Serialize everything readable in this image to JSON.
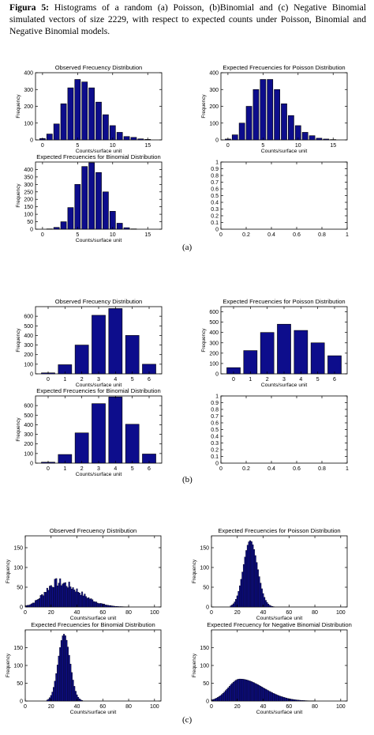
{
  "caption": {
    "label": "Figura 5:",
    "text": "Histograms of a random (a) Poisson, (b)Binomial and (c) Negative Binomial simulated vectors of size 2229, with respect to expected counts under Poisson, Binomial and Negative Binomial models."
  },
  "panel_labels": [
    "(a)",
    "(b)",
    "(c)"
  ],
  "colors": {
    "bar": "#0d0d8c",
    "bar_edge": "#000000"
  },
  "chart_data": [
    {
      "id": "a1",
      "type": "bar",
      "title": "Observed Frecuency Distribution",
      "xlabel": "Counts/surface unit",
      "ylabel": "Frequency",
      "x": [
        0,
        1,
        2,
        3,
        4,
        5,
        6,
        7,
        8,
        9,
        10,
        11,
        12,
        13,
        14,
        15
      ],
      "values": [
        8,
        35,
        95,
        215,
        310,
        360,
        345,
        310,
        225,
        150,
        85,
        45,
        20,
        15,
        6,
        3
      ],
      "xlim": [
        -1,
        17
      ],
      "ylim": [
        0,
        400
      ],
      "xticks": [
        0,
        5,
        10,
        15
      ],
      "yticks": [
        0,
        100,
        200,
        300,
        400
      ]
    },
    {
      "id": "a2",
      "type": "bar",
      "title": "Expected Frecuencies for Poisson Distribution",
      "xlabel": "Counts/surface unit",
      "ylabel": "Frequency",
      "x": [
        0,
        1,
        2,
        3,
        4,
        5,
        6,
        7,
        8,
        9,
        10,
        11,
        12,
        13,
        14,
        15
      ],
      "values": [
        5,
        30,
        100,
        200,
        300,
        360,
        360,
        300,
        215,
        145,
        85,
        45,
        25,
        10,
        5,
        2
      ],
      "xlim": [
        -1,
        17
      ],
      "ylim": [
        0,
        400
      ],
      "xticks": [
        0,
        5,
        10,
        15
      ],
      "yticks": [
        0,
        100,
        200,
        300,
        400
      ]
    },
    {
      "id": "a3",
      "type": "bar",
      "title": "Expected Frecuencies for Binomial Distribution",
      "xlabel": "Counts/surface unit",
      "ylabel": "Frequency",
      "x": [
        0,
        1,
        2,
        3,
        4,
        5,
        6,
        7,
        8,
        9,
        10,
        11,
        12,
        13,
        14,
        15
      ],
      "values": [
        0,
        2,
        12,
        50,
        145,
        300,
        420,
        445,
        380,
        250,
        120,
        40,
        10,
        2,
        0,
        0
      ],
      "xlim": [
        -1,
        17
      ],
      "ylim": [
        0,
        450
      ],
      "xticks": [
        0,
        5,
        10,
        15
      ],
      "yticks": [
        0,
        50,
        100,
        150,
        200,
        250,
        300,
        350,
        400
      ]
    },
    {
      "id": "a4",
      "type": "empty",
      "xlim": [
        0,
        1
      ],
      "ylim": [
        0,
        1
      ],
      "xticks": [
        0,
        0.2,
        0.4,
        0.6,
        0.8,
        1
      ],
      "yticks": [
        0,
        0.1,
        0.2,
        0.3,
        0.4,
        0.5,
        0.6,
        0.7,
        0.8,
        0.9,
        1
      ]
    },
    {
      "id": "b1",
      "type": "bar",
      "title": "Observed Frecuency Distribution",
      "xlabel": "Counts/surface unit",
      "ylabel": "Frequency",
      "x": [
        0,
        1,
        2,
        3,
        4,
        5,
        6
      ],
      "values": [
        10,
        95,
        300,
        610,
        680,
        400,
        100
      ],
      "xlim": [
        -0.75,
        6.75
      ],
      "ylim": [
        0,
        700
      ],
      "xticks": [
        0,
        1,
        2,
        3,
        4,
        5,
        6
      ],
      "yticks": [
        0,
        100,
        200,
        300,
        400,
        500,
        600
      ]
    },
    {
      "id": "b2",
      "type": "bar",
      "title": "Expected Frecuencies for Poisson Distribution",
      "xlabel": "Counts/surface unit",
      "ylabel": "Frequency",
      "x": [
        0,
        1,
        2,
        3,
        4,
        5,
        6
      ],
      "values": [
        60,
        225,
        400,
        480,
        420,
        300,
        175
      ],
      "xlim": [
        -0.75,
        6.75
      ],
      "ylim": [
        0,
        650
      ],
      "xticks": [
        0,
        1,
        2,
        3,
        4,
        5,
        6
      ],
      "yticks": [
        0,
        100,
        200,
        300,
        400,
        500,
        600
      ]
    },
    {
      "id": "b3",
      "type": "bar",
      "title": "Expected Frecuencies for Binomial Distribution",
      "xlabel": "Counts/surface unit",
      "ylabel": "Frequency",
      "x": [
        0,
        1,
        2,
        3,
        4,
        5,
        6
      ],
      "values": [
        10,
        90,
        315,
        620,
        690,
        405,
        95
      ],
      "xlim": [
        -0.75,
        6.75
      ],
      "ylim": [
        0,
        700
      ],
      "xticks": [
        0,
        1,
        2,
        3,
        4,
        5,
        6
      ],
      "yticks": [
        0,
        100,
        200,
        300,
        400,
        500,
        600
      ]
    },
    {
      "id": "b4",
      "type": "empty",
      "xlim": [
        0,
        1
      ],
      "ylim": [
        0,
        1
      ],
      "xticks": [
        0,
        0.2,
        0.4,
        0.6,
        0.8,
        1
      ],
      "yticks": [
        0,
        0.1,
        0.2,
        0.3,
        0.4,
        0.5,
        0.6,
        0.7,
        0.8,
        0.9,
        1
      ]
    },
    {
      "id": "c1",
      "type": "histogram",
      "dist": "negbin",
      "title": "Observed Frecuency Distribution",
      "xlabel": "Counts/surface unit",
      "ylabel": "Frequency",
      "mode": 25,
      "peak": 62,
      "sigma_left": 10,
      "sigma_right": 17,
      "range": [
        1,
        95
      ],
      "noise": true,
      "xlim": [
        0,
        105
      ],
      "ylim": [
        0,
        180
      ],
      "xticks": [
        0,
        20,
        40,
        60,
        80,
        100
      ],
      "yticks": [
        0,
        50,
        100,
        150
      ]
    },
    {
      "id": "c2",
      "type": "histogram",
      "dist": "poisson",
      "title": "Expected Frecuencies for Poisson Distribution",
      "xlabel": "Counts/surface unit",
      "ylabel": "Frequency",
      "mode": 30,
      "peak": 168,
      "sigma_left": 5.3,
      "sigma_right": 5.6,
      "range": [
        15,
        48
      ],
      "xlim": [
        0,
        105
      ],
      "ylim": [
        0,
        180
      ],
      "xticks": [
        0,
        20,
        40,
        60,
        80,
        100
      ],
      "yticks": [
        0,
        50,
        100,
        150
      ]
    },
    {
      "id": "c3",
      "type": "histogram",
      "dist": "binomial",
      "title": "Expected Frecuencies for Binomial Distribution",
      "xlabel": "Counts/surface unit",
      "ylabel": "Frequency",
      "mode": 30,
      "peak": 188,
      "sigma_left": 4.5,
      "sigma_right": 4.6,
      "range": [
        17,
        44
      ],
      "xlim": [
        0,
        105
      ],
      "ylim": [
        0,
        200
      ],
      "xticks": [
        0,
        20,
        40,
        60,
        80,
        100
      ],
      "yticks": [
        0,
        50,
        100,
        150
      ]
    },
    {
      "id": "c4",
      "type": "histogram",
      "dist": "negbin",
      "title": "Expected Frecuency for Negative Binomial Distribution",
      "xlabel": "Counts/surface unit",
      "ylabel": "Frequency",
      "mode": 22,
      "peak": 62,
      "sigma_left": 9,
      "sigma_right": 18,
      "range": [
        1,
        100
      ],
      "xlim": [
        0,
        105
      ],
      "ylim": [
        0,
        200
      ],
      "xticks": [
        0,
        20,
        40,
        60,
        80,
        100
      ],
      "yticks": [
        0,
        50,
        100,
        150
      ]
    }
  ]
}
